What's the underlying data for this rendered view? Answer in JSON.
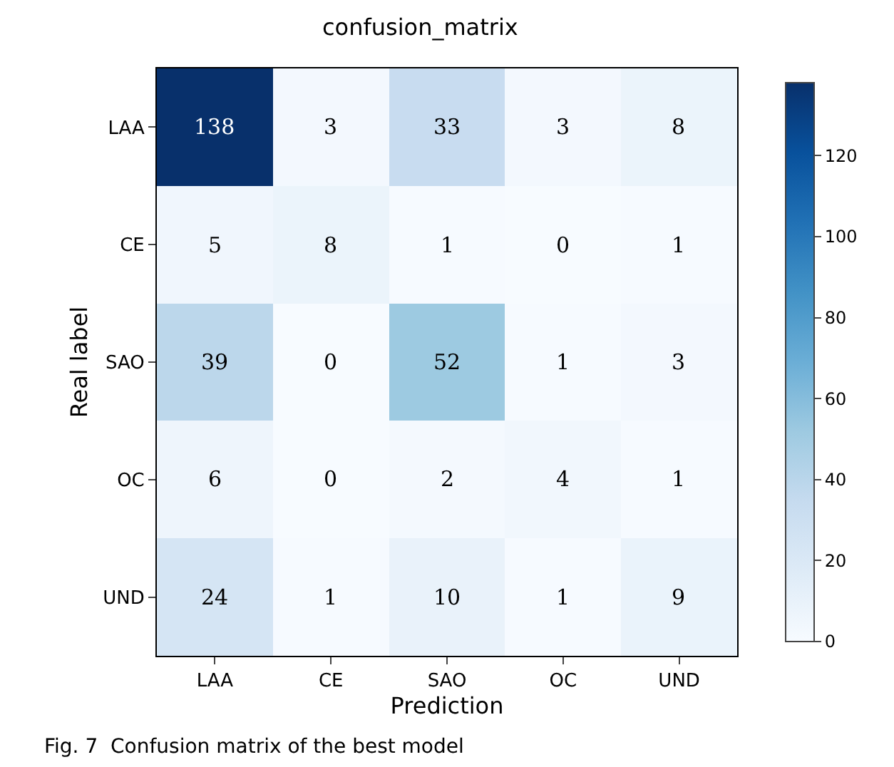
{
  "chart_data": {
    "type": "heatmap",
    "title": "confusion_matrix",
    "xlabel": "Prediction",
    "ylabel": "Real label",
    "categories": [
      "LAA",
      "CE",
      "SAO",
      "OC",
      "UND"
    ],
    "y_categories": [
      "LAA",
      "CE",
      "SAO",
      "OC",
      "UND"
    ],
    "cells": [
      [
        138,
        3,
        33,
        3,
        8
      ],
      [
        5,
        8,
        1,
        0,
        1
      ],
      [
        39,
        0,
        52,
        1,
        3
      ],
      [
        6,
        0,
        2,
        4,
        1
      ],
      [
        24,
        1,
        10,
        1,
        9
      ]
    ],
    "clim": [
      0,
      138
    ],
    "cticks": [
      0,
      20,
      40,
      60,
      80,
      100,
      120
    ],
    "data_labels": true,
    "annotations": [
      "Fig. 7  Confusion matrix of the best model"
    ]
  }
}
